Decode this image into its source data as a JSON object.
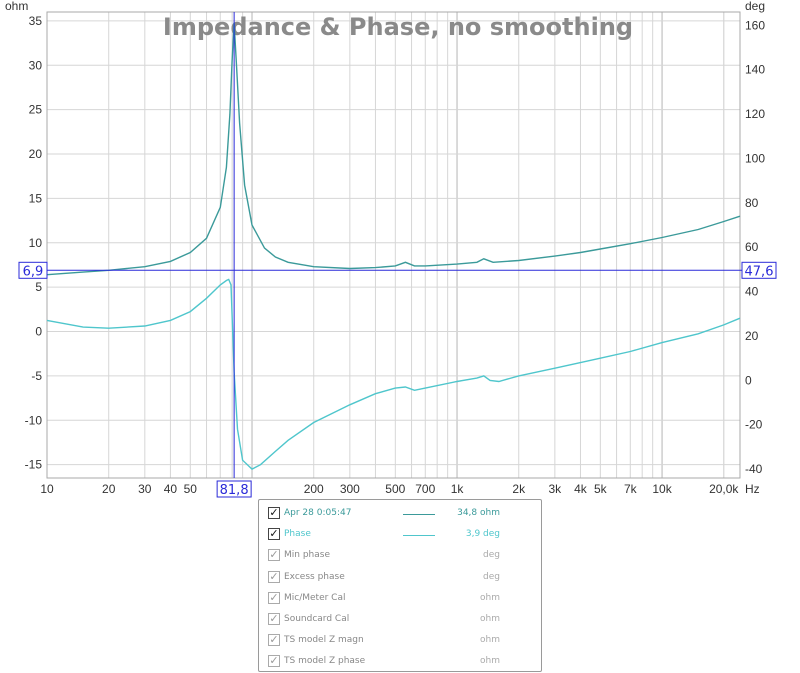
{
  "chart_data": {
    "type": "line",
    "title": "Impedance & Phase, no smoothing",
    "x_axis": {
      "scale": "log",
      "unit_label": "Hz",
      "range": [
        10,
        24000
      ],
      "tick_values": [
        10,
        20,
        30,
        40,
        50,
        100,
        200,
        300,
        500,
        700,
        1000,
        2000,
        3000,
        4000,
        5000,
        7000,
        10000,
        20000
      ],
      "tick_labels": [
        "10",
        "20",
        "30",
        "40",
        "50",
        "",
        "200",
        "300",
        "500",
        "700",
        "1k",
        "2k",
        "3k",
        "4k",
        "5k",
        "7k",
        "10k",
        "20,0k"
      ]
    },
    "y_left": {
      "unit_label": "ohm",
      "range": [
        -16.5,
        36
      ],
      "ticks": [
        -15,
        -10,
        -5,
        0,
        5,
        10,
        15,
        20,
        25,
        30,
        35
      ]
    },
    "y_right": {
      "unit_label": "deg",
      "range": [
        -44,
        166
      ],
      "ticks": [
        -40,
        -20,
        0,
        20,
        40,
        60,
        80,
        100,
        120,
        140,
        160
      ]
    },
    "series": [
      {
        "name": "Apr 28 0:05:47",
        "axis": "left",
        "color": "#3b9a9a",
        "points": [
          [
            10,
            6.4
          ],
          [
            15,
            6.7
          ],
          [
            20,
            6.9
          ],
          [
            30,
            7.3
          ],
          [
            40,
            7.9
          ],
          [
            50,
            8.9
          ],
          [
            60,
            10.5
          ],
          [
            70,
            14.0
          ],
          [
            75,
            18.5
          ],
          [
            78,
            24.5
          ],
          [
            80,
            30.5
          ],
          [
            81.8,
            34.8
          ],
          [
            84,
            30.0
          ],
          [
            87,
            23.5
          ],
          [
            92,
            16.5
          ],
          [
            100,
            12.0
          ],
          [
            115,
            9.4
          ],
          [
            130,
            8.4
          ],
          [
            150,
            7.8
          ],
          [
            200,
            7.3
          ],
          [
            300,
            7.1
          ],
          [
            400,
            7.2
          ],
          [
            500,
            7.4
          ],
          [
            560,
            7.8
          ],
          [
            620,
            7.4
          ],
          [
            700,
            7.4
          ],
          [
            1000,
            7.6
          ],
          [
            1250,
            7.8
          ],
          [
            1350,
            8.2
          ],
          [
            1500,
            7.8
          ],
          [
            2000,
            8.0
          ],
          [
            3000,
            8.5
          ],
          [
            4000,
            8.9
          ],
          [
            5000,
            9.3
          ],
          [
            7000,
            9.9
          ],
          [
            10000,
            10.6
          ],
          [
            15000,
            11.5
          ],
          [
            20000,
            12.4
          ],
          [
            24000,
            13.0
          ]
        ]
      },
      {
        "name": "Phase",
        "axis": "right",
        "color": "#4fc6cc",
        "points": [
          [
            10,
            27
          ],
          [
            15,
            24
          ],
          [
            20,
            23.5
          ],
          [
            30,
            24.5
          ],
          [
            40,
            27
          ],
          [
            50,
            31
          ],
          [
            60,
            37
          ],
          [
            70,
            43
          ],
          [
            75,
            45
          ],
          [
            77,
            45.5
          ],
          [
            79,
            43
          ],
          [
            81.8,
            3.9
          ],
          [
            85,
            -22
          ],
          [
            90,
            -36
          ],
          [
            100,
            -40
          ],
          [
            110,
            -38
          ],
          [
            130,
            -32
          ],
          [
            150,
            -27
          ],
          [
            200,
            -19
          ],
          [
            300,
            -11
          ],
          [
            400,
            -6
          ],
          [
            500,
            -3.5
          ],
          [
            560,
            -3
          ],
          [
            620,
            -4.5
          ],
          [
            700,
            -3.5
          ],
          [
            1000,
            -0.5
          ],
          [
            1250,
            1
          ],
          [
            1350,
            2
          ],
          [
            1450,
            0
          ],
          [
            1600,
            -0.5
          ],
          [
            2000,
            2
          ],
          [
            3000,
            5.5
          ],
          [
            4000,
            8
          ],
          [
            5000,
            10
          ],
          [
            7000,
            13
          ],
          [
            10000,
            17
          ],
          [
            15000,
            21
          ],
          [
            20000,
            25
          ],
          [
            24000,
            28
          ]
        ]
      }
    ],
    "cursor": {
      "x_label": "81,8",
      "left_label": "6,9",
      "right_label": "47,6",
      "x": 81.8,
      "y_left": 6.9
    },
    "grid": true
  },
  "legend": {
    "rows": [
      {
        "name": "Apr 28 0:05:47",
        "value": "34,8 ohm",
        "checked": true,
        "active": true,
        "color": "#3b9a9a",
        "show_line": true
      },
      {
        "name": "Phase",
        "value": "3,9 deg",
        "checked": true,
        "active": true,
        "color": "#4fc6cc",
        "show_line": true
      },
      {
        "name": "Min phase",
        "value": "deg",
        "checked": true,
        "active": false,
        "color": "#777777",
        "show_line": false
      },
      {
        "name": "Excess phase",
        "value": "deg",
        "checked": true,
        "active": false,
        "color": "#777777",
        "show_line": false
      },
      {
        "name": "Mic/Meter Cal",
        "value": "ohm",
        "checked": true,
        "active": false,
        "color": "#777777",
        "show_line": false
      },
      {
        "name": "Soundcard Cal",
        "value": "ohm",
        "checked": true,
        "active": false,
        "color": "#777777",
        "show_line": false
      },
      {
        "name": "TS model Z magn",
        "value": "ohm",
        "checked": true,
        "active": false,
        "color": "#777777",
        "show_line": false
      },
      {
        "name": "TS model Z phase",
        "value": "ohm",
        "checked": true,
        "active": false,
        "color": "#777777",
        "show_line": false
      }
    ]
  }
}
